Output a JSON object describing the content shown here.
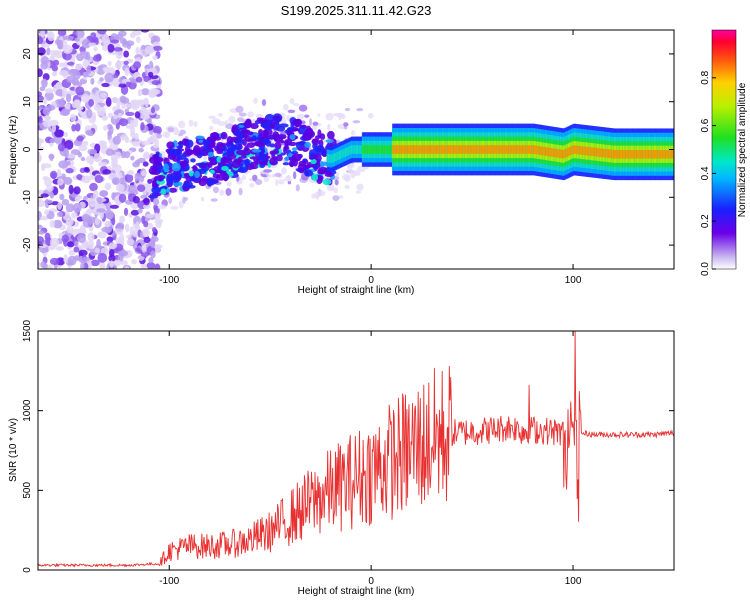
{
  "title": "S199.2025.311.11.42.G23",
  "chart_data": [
    {
      "type": "heatmap",
      "xlabel": "Height of straight line (km)",
      "ylabel": "Frequency (Hz)",
      "xlim": [
        -165,
        150
      ],
      "ylim": [
        -25,
        25
      ],
      "xticks": [
        "-100",
        "0",
        "100"
      ],
      "xtick_values": [
        -100,
        0,
        100
      ],
      "yticks": [
        "-20",
        "-10",
        "0",
        "10",
        "20"
      ],
      "ytick_values": [
        -20,
        -10,
        0,
        10,
        20
      ],
      "colorbar": {
        "label": "Normalized spectral amplitude",
        "ticks": [
          "0.0",
          "0.2",
          "0.4",
          "0.6",
          "0.8"
        ],
        "tick_values": [
          0,
          0.2,
          0.4,
          0.6,
          0.8
        ],
        "range": [
          0,
          1
        ]
      },
      "ridge": {
        "note": "approximate dominant frequency trace",
        "x": [
          -110,
          -100,
          -90,
          -80,
          -70,
          -60,
          -50,
          -40,
          -30,
          -20,
          -10,
          0,
          10,
          20,
          40,
          60,
          80,
          95,
          100,
          120,
          150
        ],
        "y": [
          -6,
          -4,
          -3,
          -2,
          -1,
          1,
          2,
          2,
          -1,
          -2,
          0,
          0,
          0,
          0,
          0,
          0,
          0,
          -1,
          0,
          -1,
          -1
        ]
      }
    },
    {
      "type": "line",
      "xlabel": "Height of straight line (km)",
      "ylabel": "SNR (10 * v/v)",
      "xlim": [
        -165,
        150
      ],
      "ylim": [
        0,
        1500
      ],
      "xticks": [
        "-100",
        "0",
        "100"
      ],
      "xtick_values": [
        -100,
        0,
        100
      ],
      "yticks": [
        "0",
        "500",
        "1000",
        "1500"
      ],
      "ytick_values": [
        0,
        500,
        1000,
        1500
      ],
      "series": [
        {
          "name": "SNR",
          "color": "#e83030",
          "x": [
            -165,
            -140,
            -120,
            -105,
            -100,
            -90,
            -80,
            -70,
            -60,
            -50,
            -40,
            -30,
            -20,
            -10,
            0,
            10,
            20,
            30,
            40,
            50,
            60,
            70,
            75,
            80,
            90,
            95,
            100,
            102,
            104,
            110,
            120,
            130,
            140,
            150
          ],
          "values": [
            30,
            30,
            30,
            40,
            120,
            150,
            150,
            160,
            190,
            240,
            330,
            420,
            500,
            560,
            620,
            690,
            760,
            820,
            860,
            870,
            880,
            900,
            870,
            880,
            870,
            860,
            850,
            1500,
            860,
            850,
            850,
            850,
            850,
            860
          ]
        }
      ]
    }
  ]
}
